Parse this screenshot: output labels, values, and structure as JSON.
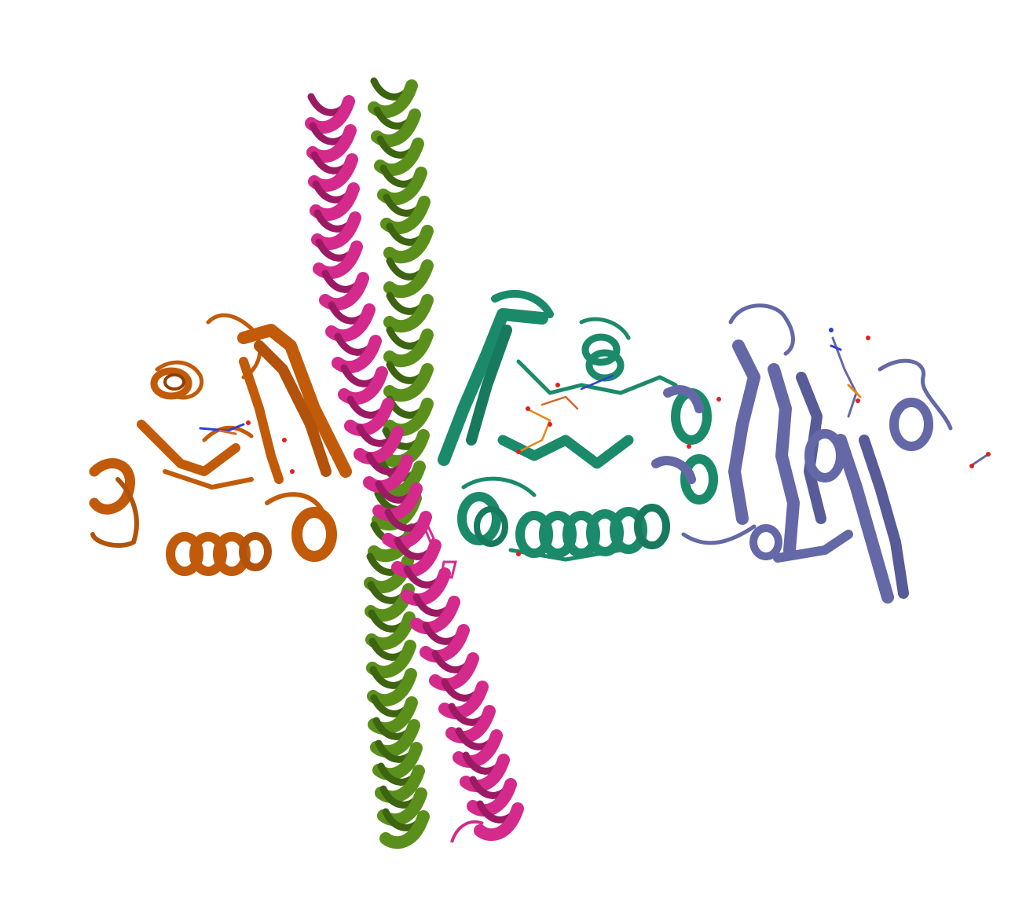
{
  "scene": {
    "background": "#ffffff",
    "chains": [
      {
        "id": "chain-orange",
        "kind": "globular-domain",
        "color": "#c15b0a",
        "dark": "#8f3f03"
      },
      {
        "id": "chain-magenta",
        "kind": "coiled-helix",
        "color": "#d32a8c",
        "dark": "#9c1a64"
      },
      {
        "id": "chain-green",
        "kind": "coiled-helix",
        "color": "#5b8f1c",
        "dark": "#3d6410"
      },
      {
        "id": "chain-teal",
        "kind": "globular-domain",
        "color": "#1b8a6b",
        "dark": "#0f604a"
      },
      {
        "id": "chain-slate",
        "kind": "globular-domain",
        "color": "#6468a6",
        "dark": "#464a80"
      }
    ],
    "ligand_colors": {
      "carbon": "#d0682c",
      "oxygen": "#e02020",
      "nitrogen": "#2f3fd0",
      "phosphorus": "#e08a18"
    }
  }
}
